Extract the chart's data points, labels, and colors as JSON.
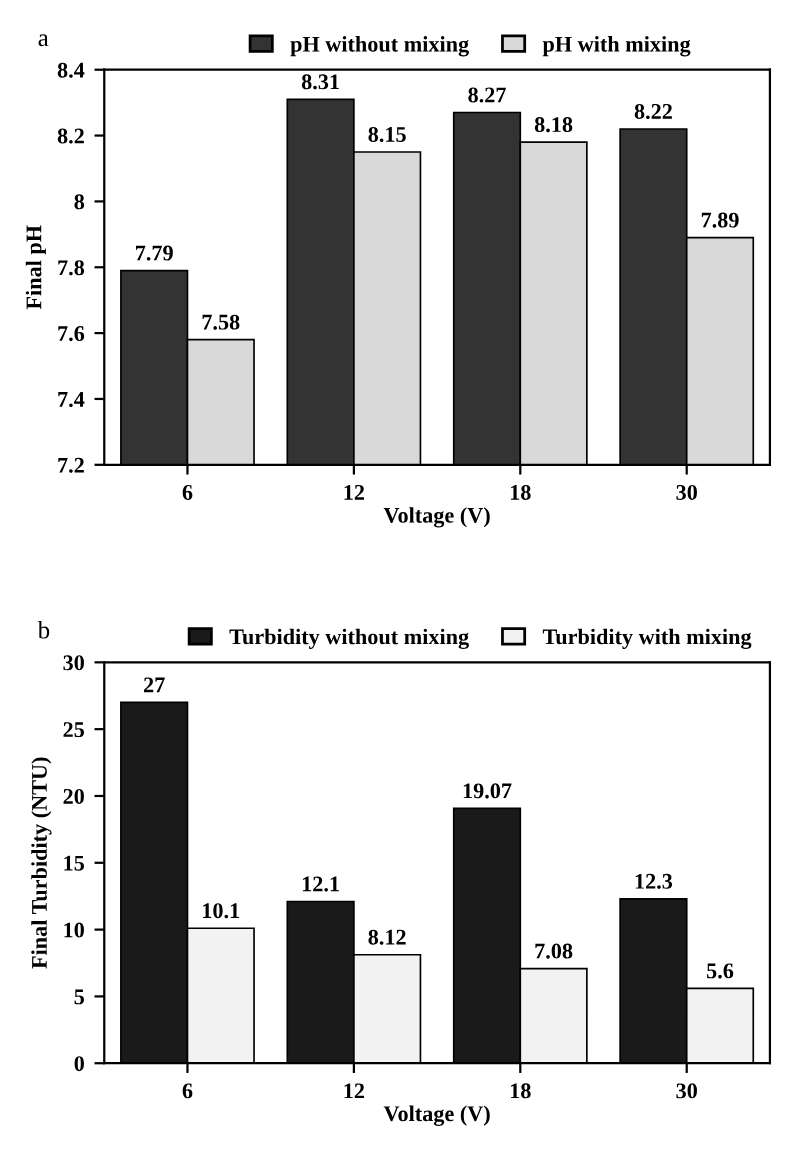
{
  "chart_data": [
    {
      "type": "bar",
      "categories": [
        "6",
        "12",
        "18",
        "30"
      ],
      "xlabel": "Voltage (V)",
      "ylabel": "Final pH",
      "ylim": [
        7.2,
        8.4
      ],
      "yticks": [
        7.2,
        7.4,
        7.6,
        7.8,
        8,
        8.2,
        8.4
      ],
      "legend": "top",
      "annotations": [
        "a"
      ],
      "series": [
        {
          "name": "pH without mixing",
          "color": "#333333",
          "values": [
            7.79,
            8.31,
            8.27,
            8.22
          ],
          "value_labels": [
            "7.79",
            "8.31",
            "8.27",
            "8.22"
          ]
        },
        {
          "name": "pH with mixing",
          "color": "#d9d9d9",
          "values": [
            7.58,
            8.15,
            8.18,
            7.89
          ],
          "value_labels": [
            "7.58",
            "8.15",
            "8.18",
            "7.89"
          ]
        }
      ]
    },
    {
      "type": "bar",
      "categories": [
        "6",
        "12",
        "18",
        "30"
      ],
      "xlabel": "Voltage (V)",
      "ylabel": "Final Turbidity (NTU)",
      "ylim": [
        0,
        30
      ],
      "yticks": [
        0,
        5,
        10,
        15,
        20,
        25,
        30
      ],
      "legend": "top",
      "annotations": [
        "b"
      ],
      "series": [
        {
          "name": "Turbidity without mixing",
          "color": "#1a1a1a",
          "values": [
            27,
            12.1,
            19.07,
            12.3
          ],
          "value_labels": [
            "27",
            "12.1",
            "19.07",
            "12.3"
          ]
        },
        {
          "name": "Turbidity with mixing",
          "color": "#f2f2f2",
          "values": [
            10.1,
            8.12,
            7.08,
            5.6
          ],
          "value_labels": [
            "10.1",
            "8.12",
            "7.08",
            "5.6"
          ]
        }
      ]
    }
  ]
}
